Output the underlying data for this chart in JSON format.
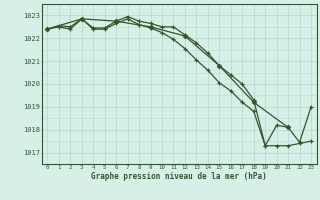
{
  "title": "Graphe pression niveau de la mer (hPa)",
  "bg_color": "#d6f0e8",
  "grid_color_major": "#b8ddd0",
  "grid_color_minor": "#cceedd",
  "line_color": "#2d5a2d",
  "xlim": [
    -0.5,
    23.5
  ],
  "ylim": [
    1016.5,
    1023.5
  ],
  "yticks": [
    1017,
    1018,
    1019,
    1020,
    1021,
    1022,
    1023
  ],
  "xticks": [
    0,
    1,
    2,
    3,
    4,
    5,
    6,
    7,
    8,
    9,
    10,
    11,
    12,
    13,
    14,
    15,
    16,
    17,
    18,
    19,
    20,
    21,
    22,
    23
  ],
  "series1": {
    "x": [
      0,
      1,
      2,
      3,
      4,
      5,
      6,
      7,
      8,
      9,
      10,
      11,
      12,
      13,
      14,
      15,
      16,
      17,
      18,
      19,
      20,
      21,
      22,
      23
    ],
    "y": [
      1022.4,
      1022.55,
      1022.5,
      1022.85,
      1022.45,
      1022.45,
      1022.75,
      1022.95,
      1022.75,
      1022.65,
      1022.5,
      1022.5,
      1022.15,
      1021.8,
      1021.35,
      1020.8,
      1020.4,
      1020.0,
      1019.3,
      1017.3,
      1018.2,
      1018.1,
      1017.45,
      1019.0
    ]
  },
  "series2": {
    "x": [
      0,
      1,
      2,
      3,
      4,
      5,
      6,
      7,
      8,
      9,
      10,
      11,
      12,
      13,
      14,
      15,
      16,
      17,
      18,
      19,
      20,
      21,
      22,
      23
    ],
    "y": [
      1022.4,
      1022.5,
      1022.4,
      1022.85,
      1022.4,
      1022.4,
      1022.65,
      1022.85,
      1022.6,
      1022.45,
      1022.25,
      1021.95,
      1021.55,
      1021.05,
      1020.6,
      1020.05,
      1019.7,
      1019.2,
      1018.8,
      1017.3,
      1017.3,
      1017.3,
      1017.4,
      1017.5
    ]
  },
  "series3": {
    "x": [
      0,
      3,
      6,
      9,
      12,
      15,
      18,
      21
    ],
    "y": [
      1022.4,
      1022.85,
      1022.75,
      1022.5,
      1022.1,
      1020.8,
      1019.2,
      1018.1
    ]
  }
}
